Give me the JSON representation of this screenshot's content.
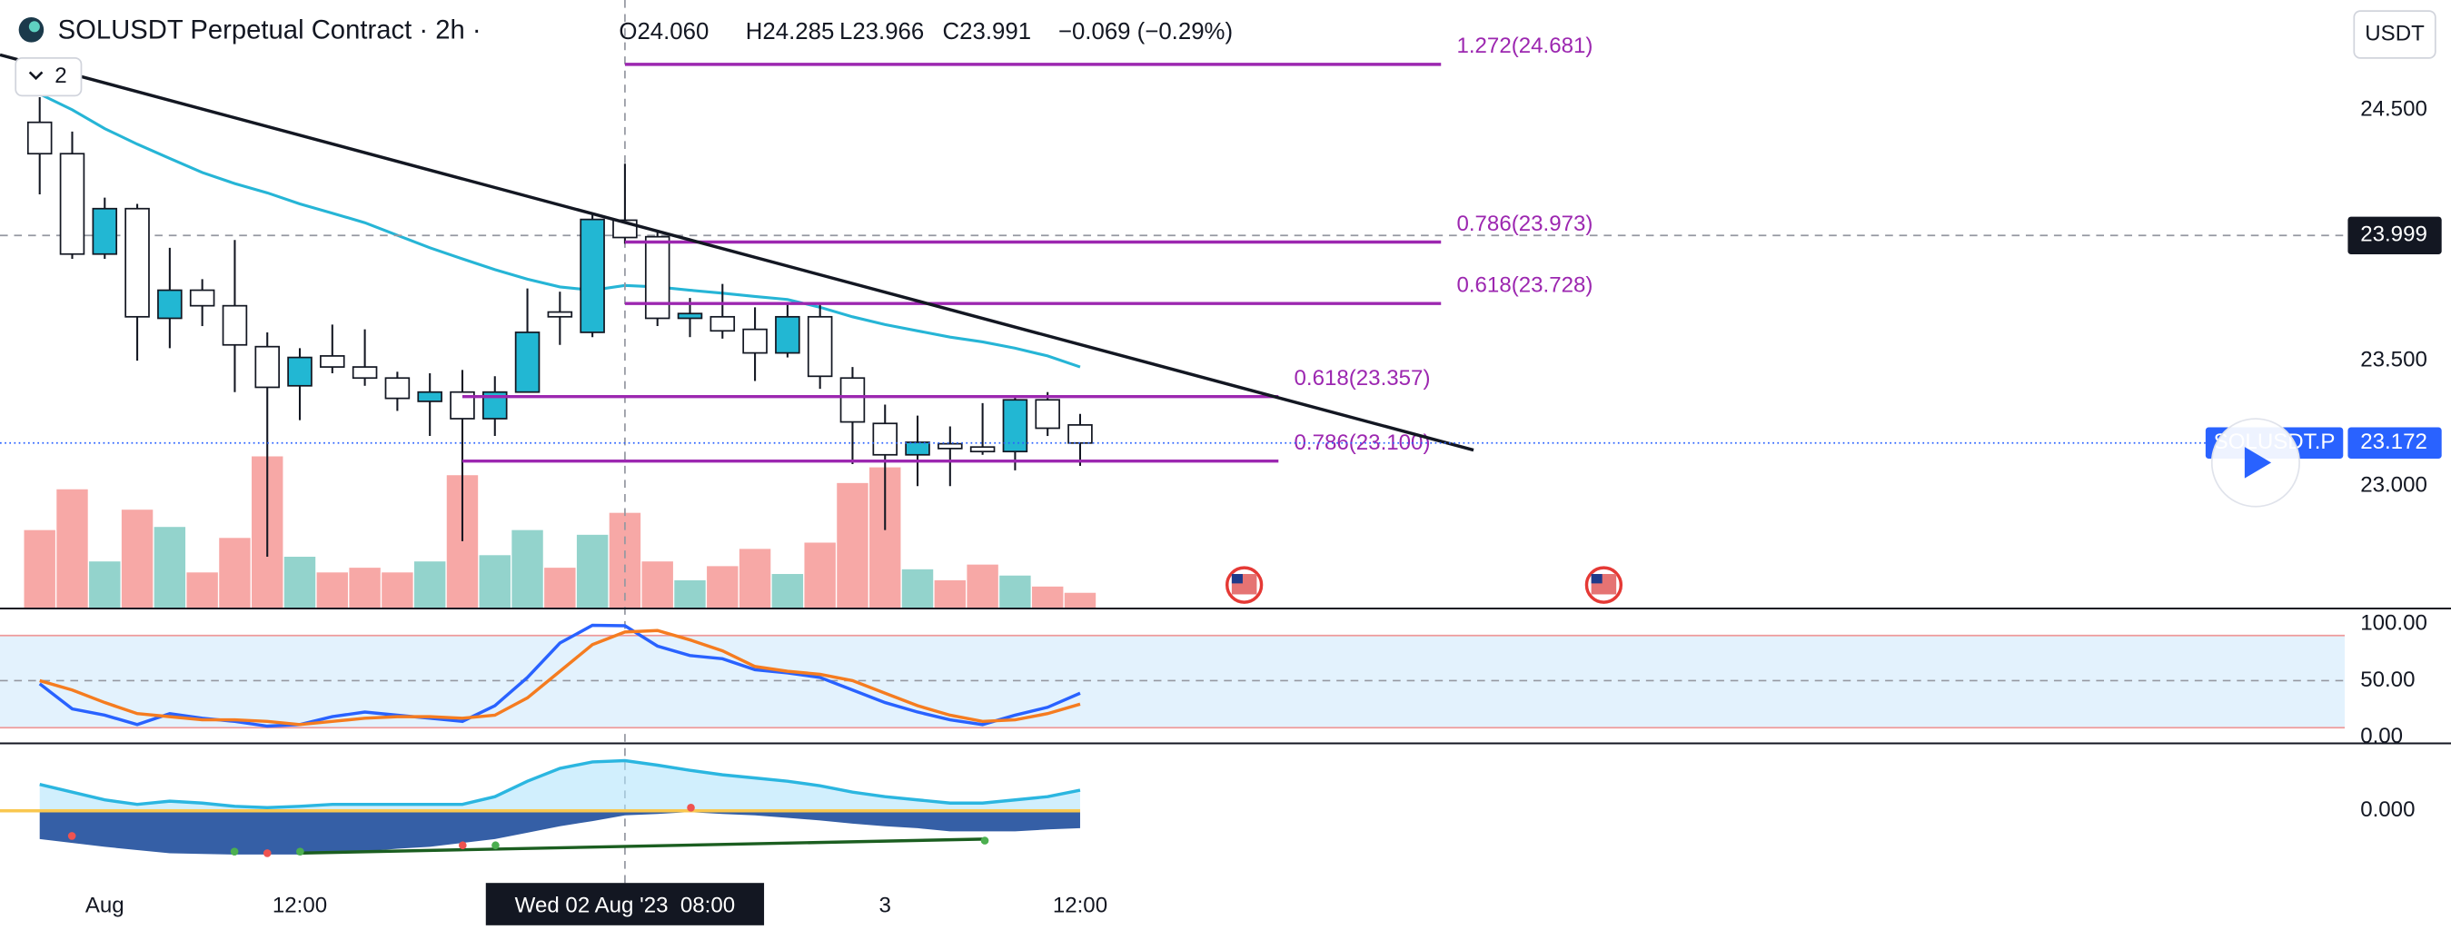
{
  "chart_data": {
    "type": "candlestick",
    "title": "SOLUSDT Perpetual Contract · 2h ·",
    "indicator_count": 2,
    "currency": "USDT",
    "legend": {
      "open": "O24.060",
      "high": "H24.285",
      "low": "L23.966",
      "close": "C23.991",
      "change": "−0.069 (−0.29%)"
    },
    "categories": [
      null,
      null,
      "Aug",
      null,
      null,
      null,
      null,
      null,
      "12:00",
      null,
      null,
      null,
      null,
      null,
      null,
      null,
      null,
      null,
      null,
      null,
      null,
      null,
      null,
      null,
      null,
      null,
      "3",
      null,
      null,
      null,
      null,
      null,
      "12:00"
    ],
    "open": [
      24.45,
      24.325,
      23.925,
      24.106,
      23.669,
      23.781,
      23.719,
      23.556,
      23.4,
      23.519,
      23.475,
      23.431,
      23.338,
      23.375,
      23.269,
      23.375,
      23.694,
      23.613,
      24.06,
      23.994,
      23.669,
      23.675,
      23.625,
      23.531,
      23.675,
      23.431,
      23.25,
      23.125,
      23.169,
      23.156,
      23.138,
      23.344,
      23.244
    ],
    "high": [
      24.55,
      24.413,
      24.15,
      24.125,
      23.95,
      23.825,
      23.981,
      23.613,
      23.55,
      23.644,
      23.625,
      23.456,
      23.45,
      23.463,
      23.438,
      23.788,
      23.775,
      24.081,
      24.285,
      24.019,
      23.75,
      23.806,
      23.713,
      23.725,
      23.725,
      23.475,
      23.325,
      23.281,
      23.238,
      23.331,
      23.363,
      23.375,
      23.288
    ],
    "low": [
      24.163,
      23.906,
      23.906,
      23.5,
      23.55,
      23.638,
      23.375,
      22.719,
      23.263,
      23.45,
      23.4,
      23.3,
      23.2,
      22.781,
      23.2,
      23.375,
      23.563,
      23.594,
      23.966,
      23.638,
      23.594,
      23.588,
      23.419,
      23.513,
      23.388,
      23.088,
      22.825,
      23.0,
      23.0,
      23.125,
      23.063,
      23.2,
      23.081
    ],
    "close": [
      24.325,
      23.925,
      24.106,
      23.675,
      23.781,
      23.719,
      23.563,
      23.394,
      23.513,
      23.475,
      23.431,
      23.35,
      23.375,
      23.269,
      23.375,
      23.613,
      23.675,
      24.063,
      23.991,
      23.669,
      23.688,
      23.619,
      23.531,
      23.675,
      23.438,
      23.256,
      23.125,
      23.175,
      23.15,
      23.138,
      23.344,
      23.231,
      23.172
    ],
    "up_color": "#22b7d3",
    "down_color": "#ffffff",
    "ylim": [
      22.5125,
      24.9375
    ],
    "yticks": [
      {
        "value": 24.5,
        "label": "24.500"
      },
      {
        "value": 23.5,
        "label": "23.500"
      },
      {
        "value": 23.0,
        "label": "23.000"
      }
    ],
    "grid": true,
    "volume": {
      "values": [
        50,
        76,
        30,
        63,
        52,
        23,
        45,
        97,
        33,
        23,
        26,
        23,
        30,
        85,
        34,
        50,
        26,
        47,
        61,
        30,
        18,
        27,
        38,
        22,
        42,
        80,
        90,
        25,
        18,
        28,
        21,
        14,
        10
      ],
      "ylim": [
        0,
        388
      ],
      "up_color": "#93d3cc",
      "down_color": "#f7a8a6"
    },
    "ma": {
      "color": "#26b5d6",
      "values": [
        24.563,
        24.5,
        24.425,
        24.363,
        24.306,
        24.25,
        24.206,
        24.169,
        24.125,
        24.088,
        24.05,
        24.0,
        23.95,
        23.906,
        23.863,
        23.825,
        23.794,
        23.781,
        23.8,
        23.794,
        23.781,
        23.769,
        23.756,
        23.744,
        23.713,
        23.675,
        23.644,
        23.619,
        23.594,
        23.575,
        23.55,
        23.519,
        23.475
      ]
    },
    "trendline": {
      "color": "#131722",
      "start": [
        -1.22,
        24.719
      ],
      "end": [
        44.1,
        23.144
      ]
    },
    "fib_color": "#9c27b0",
    "fib_levels": [
      {
        "label": "1.272(24.681)",
        "price": 24.681,
        "start": 18,
        "end": 43.1
      },
      {
        "label": "0.786(23.973)",
        "price": 23.973,
        "start": 18,
        "end": 43.1
      },
      {
        "label": "0.618(23.728)",
        "price": 23.728,
        "start": 18,
        "end": 43.1
      },
      {
        "label": "0.618(23.357)",
        "price": 23.357,
        "start": 13,
        "end": 38.1
      },
      {
        "label": "0.786(23.100)",
        "price": 23.1,
        "start": 13,
        "end": 38.1
      }
    ],
    "crosshair": {
      "price": 23.999,
      "index": 18,
      "time_label": "Wed 02 Aug '23  08:00"
    },
    "last_price": {
      "value": 23.172,
      "symbol": "SOLUSDT.P",
      "color": "#2962ff"
    },
    "stoch": {
      "ylim": [
        -5.56,
        111.11
      ],
      "yticks": [
        {
          "value": 100,
          "label": "100.00"
        },
        {
          "value": 50,
          "label": "50.00"
        },
        {
          "value": 0,
          "label": "0.00"
        }
      ],
      "bands": [
        90,
        8.3
      ],
      "mid": 50,
      "band_color": "#e3f2fd",
      "band_line_color": "#ef9a9a",
      "series": [
        {
          "color": "#2962ff",
          "values": [
            47.2,
            25.0,
            19.4,
            11.1,
            20.8,
            16.7,
            13.9,
            9.7,
            11.1,
            18.1,
            22.2,
            19.4,
            16.7,
            13.9,
            27.8,
            52.8,
            83.3,
            99.0,
            98.6,
            80.6,
            72.2,
            69.4,
            59.7,
            56.9,
            52.8,
            41.7,
            30.6,
            22.2,
            15.3,
            11.1,
            19.4,
            26.4,
            38.9
          ]
        },
        {
          "color": "#f57c20",
          "values": [
            50.0,
            41.7,
            30.6,
            20.8,
            18.1,
            15.3,
            15.3,
            13.9,
            11.1,
            13.9,
            16.7,
            18.1,
            18.1,
            16.7,
            19.4,
            34.7,
            58.3,
            81.9,
            93.1,
            94.4,
            86.1,
            76.4,
            62.5,
            58.3,
            55.6,
            50.0,
            38.9,
            27.8,
            19.4,
            13.9,
            15.3,
            20.8,
            29.2
          ]
        }
      ]
    },
    "osc": {
      "ylim": [
        -1,
        1
      ],
      "yticks": [
        {
          "value": 0,
          "label": "0.000"
        }
      ],
      "line": {
        "color": "#2bb6e0",
        "values": [
          0.41,
          0.29,
          0.17,
          0.1,
          0.15,
          0.12,
          0.07,
          0.05,
          0.07,
          0.1,
          0.1,
          0.1,
          0.1,
          0.1,
          0.22,
          0.46,
          0.66,
          0.76,
          0.78,
          0.71,
          0.63,
          0.56,
          0.51,
          0.46,
          0.39,
          0.29,
          0.22,
          0.17,
          0.12,
          0.12,
          0.17,
          0.22,
          0.32
        ]
      },
      "area": {
        "color": "#1f4e9c",
        "values": [
          -0.44,
          -0.5,
          -0.56,
          -0.61,
          -0.66,
          -0.67,
          -0.68,
          -0.68,
          -0.68,
          -0.66,
          -0.63,
          -0.59,
          -0.56,
          -0.5,
          -0.44,
          -0.34,
          -0.24,
          -0.16,
          -0.07,
          -0.05,
          -0.02,
          -0.05,
          -0.07,
          -0.11,
          -0.15,
          -0.2,
          -0.24,
          -0.27,
          -0.32,
          -0.32,
          -0.32,
          -0.29,
          -0.27
        ]
      }
    }
  }
}
